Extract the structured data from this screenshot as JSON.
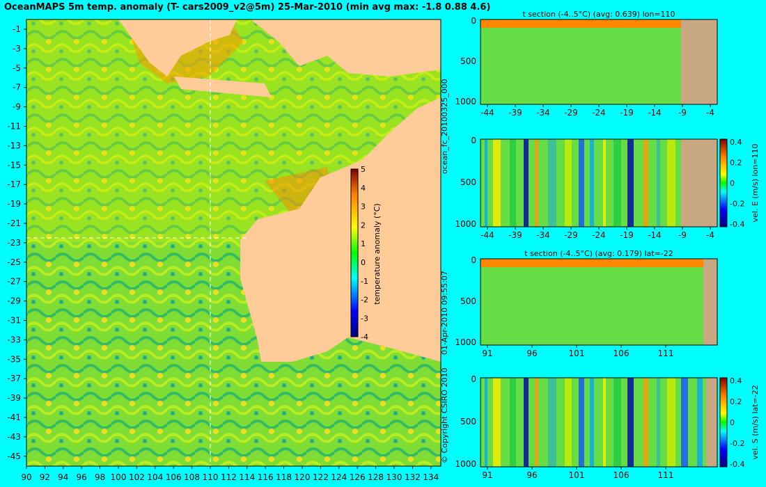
{
  "title": "OceanMAPS 5m temp. anomaly (T- cars2009_v2@5m) 25-Mar-2010 (min avg max: -1.8 0.88 4.6)",
  "side_text": {
    "file": "ocean_fc_20100325_000",
    "date": "01-Apr-2010 09:55:07",
    "copyright": "© Copyright CSIRO 2010"
  },
  "colors": {
    "background": "#00ffff",
    "land": "#ffcc99",
    "section_land": "#c8a882",
    "crosshair": "#ffffff"
  },
  "chart_data": [
    {
      "type": "heatmap",
      "name": "map",
      "title": "",
      "xlim": [
        90,
        135
      ],
      "ylim": [
        -45,
        0
      ],
      "x_ticks": [
        "90",
        "92",
        "94",
        "96",
        "98",
        "100",
        "102",
        "104",
        "106",
        "108",
        "110",
        "112",
        "114",
        "116",
        "118",
        "120",
        "122",
        "124",
        "126",
        "128",
        "130",
        "132",
        "134"
      ],
      "y_ticks": [
        "-1",
        "-3",
        "-5",
        "-7",
        "-9",
        "-11",
        "-13",
        "-15",
        "-17",
        "-19",
        "-21",
        "-23",
        "-25",
        "-27",
        "-29",
        "-31",
        "-33",
        "-35",
        "-37",
        "-39",
        "-41",
        "-43",
        "-45"
      ],
      "crosshair": {
        "lon": 110,
        "lat": -22
      },
      "colorbar": {
        "label": "temperature anomaly (°C)",
        "ticks": [
          "5",
          "4",
          "3",
          "2",
          "1",
          "0",
          "-1",
          "-2",
          "-3",
          "-4"
        ],
        "range": [
          -4,
          5
        ]
      }
    },
    {
      "type": "heatmap",
      "name": "t-section-lon",
      "title": "t section (-4..5°C) (avg: 0.639) lon=110",
      "x_ticks": [
        "-44",
        "-39",
        "-34",
        "-29",
        "-24",
        "-19",
        "-14",
        "-9",
        "-4"
      ],
      "y_ticks": [
        "0",
        "500",
        "1000"
      ],
      "xlim": [
        -45,
        -1
      ],
      "ylim": [
        0,
        1050
      ]
    },
    {
      "type": "heatmap",
      "name": "velE-section-lon",
      "title": "",
      "ylabel": "vel. E (m/s) lon=110",
      "x_ticks": [
        "-44",
        "-39",
        "-34",
        "-29",
        "-24",
        "-19",
        "-14",
        "-9",
        "-4"
      ],
      "y_ticks": [
        "0",
        "500",
        "1000"
      ],
      "colorbar_ticks": [
        "0.4",
        "0.2",
        "0",
        "-0.2",
        "-0.4"
      ]
    },
    {
      "type": "heatmap",
      "name": "t-section-lat",
      "title": "t section (-4..5°C) (avg: 0.179) lat=-22",
      "x_ticks": [
        "91",
        "96",
        "101",
        "106",
        "111"
      ],
      "y_ticks": [
        "0",
        "500",
        "1000"
      ]
    },
    {
      "type": "heatmap",
      "name": "velS-section-lat",
      "title": "",
      "ylabel": "vel. S (m/s) lat=-22",
      "x_ticks": [
        "91",
        "96",
        "101",
        "106",
        "111"
      ],
      "y_ticks": [
        "0",
        "500",
        "1000"
      ],
      "colorbar_ticks": [
        "0.4",
        "0.2",
        "0",
        "-0.2",
        "-0.4"
      ]
    }
  ]
}
